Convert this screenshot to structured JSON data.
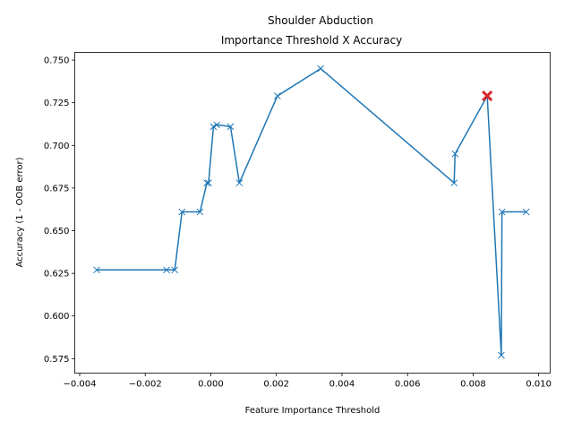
{
  "chart_data": {
    "type": "line",
    "title_lines": [
      "Shoulder Abduction",
      "Importance Threshold X Accuracy"
    ],
    "xlabel": "Feature Importance Threshold",
    "ylabel": "Accuracy (1 - OOB error)",
    "xlim": [
      -0.00415,
      0.01035
    ],
    "ylim": [
      0.5665,
      0.7545
    ],
    "xticks": [
      -0.004,
      -0.002,
      0.0,
      0.002,
      0.004,
      0.006,
      0.008,
      0.01
    ],
    "xtick_labels": [
      "−0.004",
      "−0.002",
      "0.000",
      "0.002",
      "0.004",
      "0.006",
      "0.008",
      "0.010"
    ],
    "yticks": [
      0.575,
      0.6,
      0.625,
      0.65,
      0.675,
      0.7,
      0.725,
      0.75
    ],
    "ytick_labels": [
      "0.575",
      "0.600",
      "0.625",
      "0.650",
      "0.675",
      "0.700",
      "0.725",
      "0.750"
    ],
    "grid": false,
    "series": [
      {
        "color": "#1f77b4",
        "marker": "x",
        "x": [
          -0.00348,
          -0.00135,
          -0.0011,
          -0.00088,
          -0.00033,
          -0.00012,
          -7e-05,
          8e-05,
          0.00018,
          0.0006,
          0.00087,
          0.00203,
          0.00335,
          0.00742,
          0.00745,
          0.00843,
          0.00886,
          0.00888,
          0.00962
        ],
        "y": [
          0.627,
          0.627,
          0.627,
          0.661,
          0.661,
          0.678,
          0.678,
          0.711,
          0.712,
          0.711,
          0.678,
          0.729,
          0.745,
          0.678,
          0.695,
          0.729,
          0.577,
          0.661,
          0.661
        ]
      }
    ],
    "highlight": {
      "x": 0.00843,
      "y": 0.729,
      "color": "#d62728",
      "marker": "x"
    }
  }
}
